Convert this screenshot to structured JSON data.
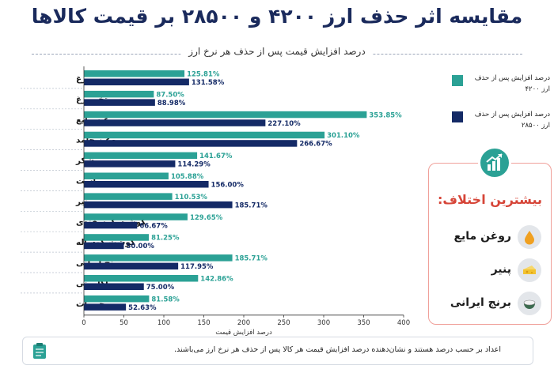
{
  "header": {
    "title": "مقایسه اثر حذف ارز ۴۲۰۰ و ۲۸۵۰۰ بر قیمت کالاها",
    "subtitle": "درصد افزایش قیمت پس از حذف هر نرخ ارز"
  },
  "chart_data": {
    "type": "bar",
    "orientation": "horizontal",
    "categories": [
      "مرغ",
      "تخم‌مرغ",
      "روغن مایع",
      "روغن جامد",
      "شکر",
      "ماست",
      "پنیر",
      "گوشت گوسفندی",
      "گوشت گوساله",
      "برنج ایرانی",
      "ماکارونی",
      "حبوبات"
    ],
    "series": [
      {
        "name": "درصد افزایش پس از حذف ارز ۴۲۰۰",
        "color": "#2ba195",
        "values": [
          125.81,
          87.5,
          353.85,
          301.1,
          141.67,
          105.88,
          110.53,
          129.65,
          81.25,
          185.71,
          142.86,
          81.58
        ]
      },
      {
        "name": "درصد افزایش پس از حذف ارز ۲۸۵۰۰",
        "color": "#142a66",
        "values": [
          131.58,
          88.98,
          227.1,
          266.67,
          114.29,
          156.0,
          185.71,
          66.67,
          50.0,
          117.95,
          75.0,
          52.63
        ]
      }
    ],
    "value_labels": [
      [
        "125.81%",
        "87.50%",
        "353.85%",
        "301.10%",
        "141.67%",
        "105.88%",
        "110.53%",
        "129.65%",
        "81.25%",
        "185.71%",
        "142.86%",
        "81.58%"
      ],
      [
        "131.58%",
        "88.98%",
        "227.10%",
        "266.67%",
        "114.29%",
        "156.00%",
        "185.71%",
        "66.67%",
        "50.00%",
        "117.95%",
        "75.00%",
        "52.63%"
      ]
    ],
    "xlabel": "درصد افزایش قیمت",
    "xlim": [
      0,
      400
    ],
    "xticks": [
      0,
      50,
      100,
      150,
      200,
      250,
      300,
      350,
      400
    ],
    "legend_position": "right",
    "grid": false
  },
  "highlight": {
    "title": "بیشترین اختلاف:",
    "items": [
      {
        "label": "روغن مایع",
        "icon": "oil-drop-icon"
      },
      {
        "label": "پنیر",
        "icon": "cheese-icon"
      },
      {
        "label": "برنج ایرانی",
        "icon": "rice-bowl-icon"
      }
    ],
    "icon": "growth-chart-icon",
    "accent": "#d64538"
  },
  "footer": {
    "note": "اعداد بر حسب درصد هستند و نشان‌دهنده درصد افزایش قیمت هر کالا پس از حذف هر نرخ ارز می‌باشند.",
    "icon": "clipboard-icon"
  }
}
